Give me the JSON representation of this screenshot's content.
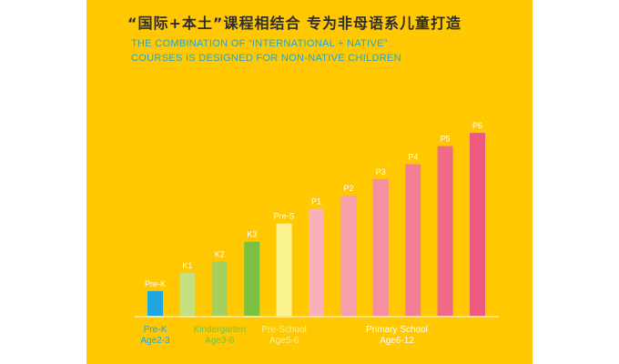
{
  "title_cn": "“国际+本土”课程相结合 专为非母语系儿童打造",
  "title_en_line1": "THE COMBINATION OF “INTERNATIONAL + NATIVE”",
  "title_en_line2": "COURSES IS DESIGNED FOR NON-NATIVE CHILDREN",
  "colors": {
    "background": "#ffc800",
    "title_cn": "#2d2d2d",
    "title_en": "#1da7d6",
    "prek": "#1fa6e0",
    "kindergarten": "#7cc242",
    "preschool": "#fbf38f",
    "primary": "#f27f96",
    "axis": "#ffffff"
  },
  "chart_data": {
    "type": "bar",
    "title": "“国际+本土”课程相结合 专为非母语系儿童打造",
    "xlabel": "",
    "ylabel": "",
    "grid": false,
    "legend": "none",
    "categories": [
      "Pre-K",
      "K1",
      "K2",
      "K3",
      "Pre-S",
      "P1",
      "P2",
      "P3",
      "P4",
      "P5",
      "P6"
    ],
    "values": [
      1.5,
      2.6,
      3.3,
      4.5,
      5.6,
      6.5,
      7.3,
      8.3,
      9.2,
      10.3,
      11.1
    ],
    "bar_colors": [
      "#1fa6e0",
      "#c5e07e",
      "#a5d05e",
      "#7cc242",
      "#fbf38f",
      "#f8b1b8",
      "#f6a0ad",
      "#f4909f",
      "#f27f96",
      "#ef6b88",
      "#ec5a7e"
    ],
    "ylim": [
      0,
      12
    ],
    "groups": [
      {
        "name": "Pre-K",
        "age": "Age2-3",
        "color": "#1fa6e0",
        "start": 0,
        "end": 0
      },
      {
        "name": "Kindergarten",
        "age": "Age3-6",
        "color": "#7cc242",
        "start": 1,
        "end": 3
      },
      {
        "name": "Pre-School",
        "age": "Age5-6",
        "color": "#fbf38f",
        "start": 4,
        "end": 4
      },
      {
        "name": "Primary School",
        "age": "Age6-12",
        "color": "#ffffff",
        "start": 5,
        "end": 10
      }
    ]
  }
}
